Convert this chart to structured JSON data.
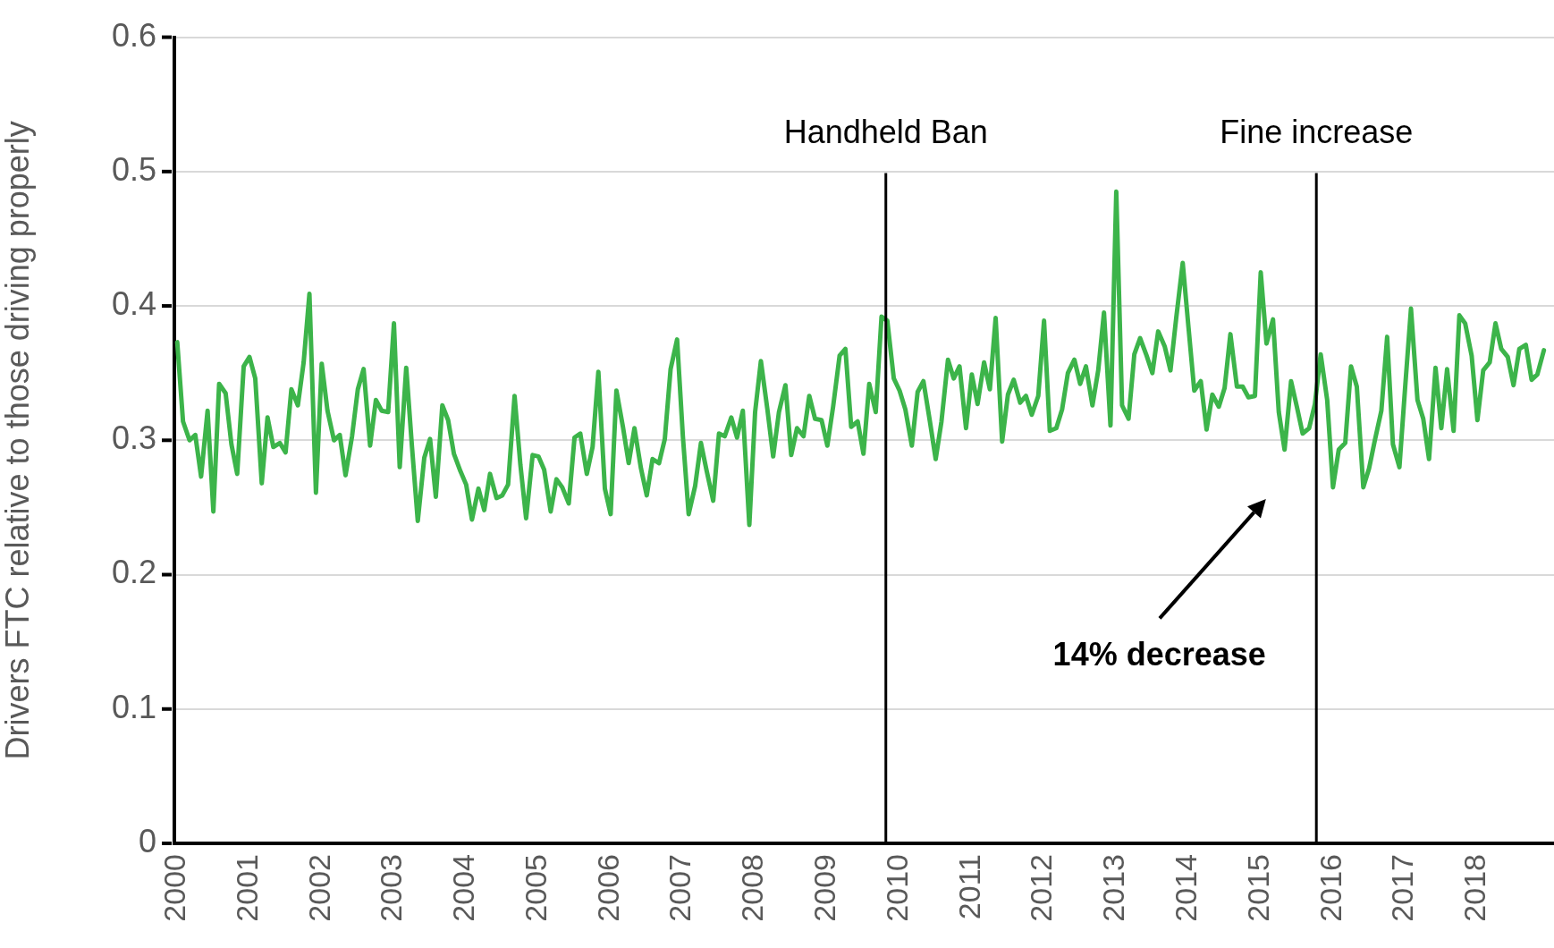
{
  "chart_data": {
    "type": "line",
    "ylabel": "Drivers FTC relative to those driving properly",
    "x": [
      2000.04,
      2000.12,
      2000.21,
      2000.29,
      2000.37,
      2000.46,
      2000.54,
      2000.62,
      2000.71,
      2000.79,
      2000.87,
      2000.96,
      2001.04,
      2001.12,
      2001.21,
      2001.29,
      2001.37,
      2001.46,
      2001.54,
      2001.62,
      2001.71,
      2001.79,
      2001.87,
      2001.96,
      2002.04,
      2002.12,
      2002.21,
      2002.29,
      2002.37,
      2002.46,
      2002.54,
      2002.62,
      2002.71,
      2002.79,
      2002.87,
      2002.96,
      2003.04,
      2003.12,
      2003.21,
      2003.29,
      2003.37,
      2003.46,
      2003.54,
      2003.62,
      2003.71,
      2003.79,
      2003.87,
      2003.96,
      2004.04,
      2004.12,
      2004.21,
      2004.29,
      2004.37,
      2004.46,
      2004.54,
      2004.62,
      2004.71,
      2004.79,
      2004.87,
      2004.96,
      2005.04,
      2005.12,
      2005.21,
      2005.29,
      2005.37,
      2005.46,
      2005.54,
      2005.62,
      2005.71,
      2005.79,
      2005.87,
      2005.96,
      2006.04,
      2006.12,
      2006.21,
      2006.29,
      2006.37,
      2006.46,
      2006.54,
      2006.62,
      2006.71,
      2006.79,
      2006.87,
      2006.96,
      2007.04,
      2007.12,
      2007.21,
      2007.29,
      2007.37,
      2007.46,
      2007.54,
      2007.62,
      2007.71,
      2007.79,
      2007.87,
      2007.96,
      2008.04,
      2008.12,
      2008.21,
      2008.29,
      2008.37,
      2008.46,
      2008.54,
      2008.62,
      2008.71,
      2008.79,
      2008.87,
      2008.96,
      2009.04,
      2009.12,
      2009.21,
      2009.29,
      2009.37,
      2009.46,
      2009.54,
      2009.62,
      2009.71,
      2009.79,
      2009.87,
      2009.96,
      2010.04,
      2010.12,
      2010.21,
      2010.29,
      2010.37,
      2010.46,
      2010.54,
      2010.62,
      2010.71,
      2010.79,
      2010.87,
      2010.96,
      2011.04,
      2011.12,
      2011.21,
      2011.29,
      2011.37,
      2011.46,
      2011.54,
      2011.62,
      2011.71,
      2011.79,
      2011.87,
      2011.96,
      2012.04,
      2012.12,
      2012.21,
      2012.29,
      2012.37,
      2012.46,
      2012.54,
      2012.62,
      2012.71,
      2012.79,
      2012.87,
      2012.96,
      2013.04,
      2013.12,
      2013.21,
      2013.29,
      2013.37,
      2013.46,
      2013.54,
      2013.62,
      2013.71,
      2013.79,
      2013.87,
      2013.96,
      2014.04,
      2014.12,
      2014.21,
      2014.29,
      2014.37,
      2014.46,
      2014.54,
      2014.62,
      2014.71,
      2014.79,
      2014.87,
      2014.96,
      2015.04,
      2015.12,
      2015.21,
      2015.29,
      2015.37,
      2015.46,
      2015.54,
      2015.62,
      2015.71,
      2015.79,
      2015.87,
      2015.96,
      2016.04,
      2016.12,
      2016.21,
      2016.29,
      2016.37,
      2016.46,
      2016.54,
      2016.62,
      2016.71,
      2016.79,
      2016.87,
      2016.96,
      2017.04,
      2017.12,
      2017.21,
      2017.29,
      2017.37,
      2017.46,
      2017.54,
      2017.62,
      2017.71,
      2017.79,
      2017.87,
      2017.96,
      2018.04,
      2018.12,
      2018.21,
      2018.29,
      2018.37,
      2018.46,
      2018.54,
      2018.62,
      2018.71,
      2018.79,
      2018.87,
      2018.96
    ],
    "series": [
      {
        "color": "#3cb44a",
        "values": [
          0.373,
          0.314,
          0.3,
          0.304,
          0.273,
          0.322,
          0.247,
          0.342,
          0.335,
          0.297,
          0.275,
          0.355,
          0.362,
          0.346,
          0.268,
          0.317,
          0.295,
          0.298,
          0.291,
          0.338,
          0.326,
          0.358,
          0.409,
          0.261,
          0.357,
          0.322,
          0.3,
          0.304,
          0.274,
          0.303,
          0.338,
          0.353,
          0.296,
          0.33,
          0.322,
          0.321,
          0.387,
          0.28,
          0.354,
          0.295,
          0.24,
          0.287,
          0.301,
          0.258,
          0.326,
          0.315,
          0.29,
          0.277,
          0.267,
          0.241,
          0.264,
          0.248,
          0.275,
          0.257,
          0.259,
          0.267,
          0.333,
          0.282,
          0.242,
          0.289,
          0.288,
          0.278,
          0.247,
          0.271,
          0.265,
          0.253,
          0.302,
          0.305,
          0.275,
          0.295,
          0.351,
          0.264,
          0.245,
          0.337,
          0.31,
          0.283,
          0.309,
          0.279,
          0.259,
          0.286,
          0.283,
          0.301,
          0.353,
          0.375,
          0.303,
          0.245,
          0.266,
          0.298,
          0.277,
          0.255,
          0.305,
          0.303,
          0.317,
          0.302,
          0.322,
          0.237,
          0.321,
          0.359,
          0.323,
          0.288,
          0.321,
          0.341,
          0.289,
          0.309,
          0.303,
          0.333,
          0.316,
          0.315,
          0.296,
          0.325,
          0.363,
          0.368,
          0.31,
          0.314,
          0.29,
          0.342,
          0.321,
          0.392,
          0.389,
          0.346,
          0.337,
          0.323,
          0.296,
          0.336,
          0.344,
          0.314,
          0.286,
          0.314,
          0.36,
          0.346,
          0.355,
          0.309,
          0.349,
          0.327,
          0.358,
          0.338,
          0.391,
          0.299,
          0.334,
          0.345,
          0.328,
          0.333,
          0.319,
          0.333,
          0.389,
          0.307,
          0.309,
          0.323,
          0.35,
          0.36,
          0.342,
          0.355,
          0.326,
          0.352,
          0.395,
          0.311,
          0.485,
          0.326,
          0.316,
          0.364,
          0.376,
          0.363,
          0.35,
          0.381,
          0.37,
          0.352,
          0.391,
          0.432,
          0.384,
          0.337,
          0.344,
          0.308,
          0.334,
          0.325,
          0.339,
          0.379,
          0.34,
          0.34,
          0.332,
          0.333,
          0.425,
          0.372,
          0.39,
          0.321,
          0.293,
          0.344,
          0.325,
          0.305,
          0.309,
          0.327,
          0.364,
          0.33,
          0.265,
          0.293,
          0.298,
          0.355,
          0.34,
          0.265,
          0.279,
          0.3,
          0.322,
          0.377,
          0.297,
          0.28,
          0.34,
          0.398,
          0.33,
          0.316,
          0.286,
          0.354,
          0.309,
          0.353,
          0.307,
          0.393,
          0.387,
          0.363,
          0.315,
          0.352,
          0.358,
          0.387,
          0.368,
          0.362,
          0.341,
          0.368,
          0.371,
          0.345,
          0.349,
          0.367
        ]
      }
    ],
    "xlim": [
      2000,
      2019.1
    ],
    "xticks": [
      2000,
      2001,
      2002,
      2003,
      2004,
      2005,
      2006,
      2007,
      2008,
      2009,
      2010,
      2011,
      2012,
      2013,
      2014,
      2015,
      2016,
      2017,
      2018
    ],
    "ylim": [
      0,
      0.6
    ],
    "yticks": [
      0,
      0.1,
      0.2,
      0.3,
      0.4,
      0.5,
      0.6
    ],
    "ref_lines": [
      {
        "axis": "x",
        "value": 2009.85,
        "label": "Handheld Ban",
        "color": "#000000"
      },
      {
        "axis": "x",
        "value": 2015.81,
        "label": "Fine increase",
        "color": "#000000"
      }
    ],
    "annotations": [
      "14% decrease"
    ],
    "grid": "y",
    "legend": false,
    "marker": "none",
    "line_style": "solid"
  }
}
